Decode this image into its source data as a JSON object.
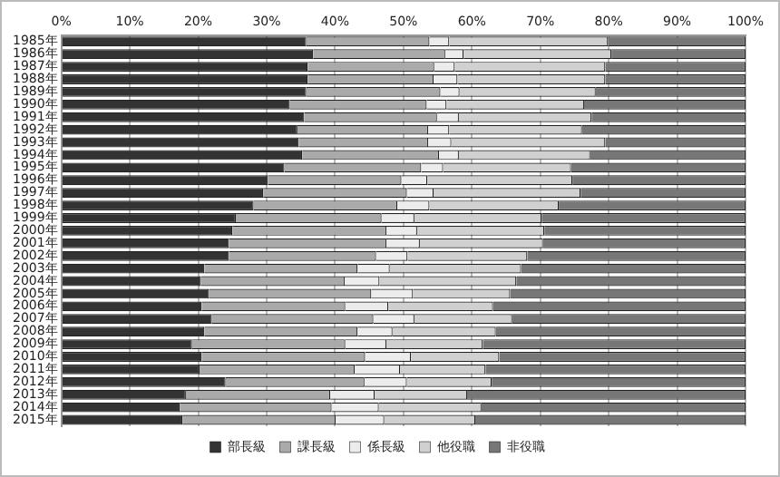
{
  "chart_data": {
    "type": "bar",
    "orientation": "horizontal",
    "stacked": true,
    "grid": "x",
    "legend": "bottom",
    "categories": [
      "1985年",
      "1986年",
      "1987年",
      "1988年",
      "1989年",
      "1990年",
      "1991年",
      "1992年",
      "1993年",
      "1994年",
      "1995年",
      "1996年",
      "1997年",
      "1998年",
      "1999年",
      "2000年",
      "2001年",
      "2002年",
      "2003年",
      "2004年",
      "2005年",
      "2006年",
      "2007年",
      "2008年",
      "2009年",
      "2010年",
      "2011年",
      "2012年",
      "2013年",
      "2014年",
      "2015年"
    ],
    "xlim": [
      0,
      100
    ],
    "xticks": [
      {
        "value": 0,
        "label": "0%"
      },
      {
        "value": 10,
        "label": "10%"
      },
      {
        "value": 20,
        "label": "20%"
      },
      {
        "value": 30,
        "label": "30%"
      },
      {
        "value": 40,
        "label": "40%"
      },
      {
        "value": 50,
        "label": "50%"
      },
      {
        "value": 60,
        "label": "60%"
      },
      {
        "value": 70,
        "label": "70%"
      },
      {
        "value": 80,
        "label": "80%"
      },
      {
        "value": 90,
        "label": "90%"
      },
      {
        "value": 100,
        "label": "100%"
      }
    ],
    "series": [
      {
        "name": "部長級",
        "color": "#333333",
        "values": [
          35.8,
          36.8,
          36.0,
          36.0,
          35.8,
          33.4,
          35.5,
          34.5,
          34.7,
          35.2,
          32.6,
          30.2,
          29.5,
          28.1,
          25.5,
          25.0,
          24.5,
          24.5,
          20.9,
          20.4,
          21.6,
          20.5,
          22.0,
          20.9,
          19.1,
          20.5,
          20.2,
          24.0,
          18.2,
          17.3,
          17.7
        ]
      },
      {
        "name": "課長級",
        "color": "#aaaaaa",
        "values": [
          18.0,
          19.3,
          18.5,
          18.4,
          19.6,
          20.0,
          19.4,
          19.1,
          18.9,
          20.0,
          20.0,
          19.5,
          21.0,
          21.0,
          21.3,
          22.5,
          23.0,
          21.5,
          22.4,
          21.0,
          23.7,
          21.0,
          23.6,
          22.4,
          22.4,
          23.9,
          22.7,
          20.3,
          21.1,
          22.2,
          22.4
        ]
      },
      {
        "name": "係長級",
        "color": "#ececec",
        "values": [
          2.9,
          2.7,
          3.0,
          3.5,
          2.8,
          2.9,
          3.2,
          3.1,
          3.4,
          2.9,
          3.2,
          3.8,
          3.9,
          4.7,
          4.8,
          4.5,
          4.9,
          4.6,
          4.7,
          5.1,
          6.1,
          6.3,
          6.0,
          5.1,
          6.0,
          6.7,
          6.6,
          6.2,
          6.5,
          6.9,
          7.1
        ]
      },
      {
        "name": "他役職",
        "color": "#d0d0d0",
        "values": [
          23.2,
          21.6,
          22.0,
          21.6,
          19.9,
          20.1,
          19.4,
          19.4,
          22.5,
          19.2,
          18.7,
          21.2,
          21.5,
          18.9,
          18.6,
          18.6,
          18.0,
          17.5,
          19.2,
          20.0,
          14.2,
          15.3,
          14.3,
          15.1,
          14.1,
          12.9,
          12.5,
          12.4,
          13.5,
          15.0,
          13.3
        ]
      },
      {
        "name": "非役職",
        "color": "#777777",
        "values": [
          20.1,
          19.6,
          20.5,
          20.5,
          21.9,
          23.6,
          22.5,
          23.9,
          20.5,
          22.7,
          25.5,
          25.3,
          24.1,
          27.3,
          29.8,
          29.4,
          29.6,
          31.9,
          32.8,
          33.5,
          34.4,
          36.9,
          34.1,
          36.5,
          38.4,
          36.0,
          38.0,
          37.1,
          40.7,
          38.6,
          39.5
        ]
      }
    ]
  }
}
